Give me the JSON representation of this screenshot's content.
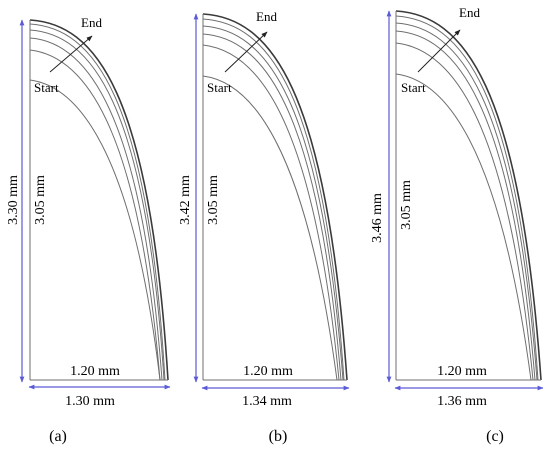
{
  "panels": [
    {
      "id": "a",
      "caption": "(a)",
      "label_start": "Start",
      "label_end": "End",
      "outer_height_label": "3.30 mm",
      "inner_height_label": "3.05 mm",
      "inner_width_label": "1.20 mm",
      "outer_width_label": "1.30 mm"
    },
    {
      "id": "b",
      "caption": "(b)",
      "label_start": "Start",
      "label_end": "End",
      "outer_height_label": "3.42 mm",
      "inner_height_label": "3.05 mm",
      "inner_width_label": "1.20 mm",
      "outer_width_label": "1.34 mm"
    },
    {
      "id": "c",
      "caption": "(c)",
      "label_start": "Start",
      "label_end": "End",
      "outer_height_label": "3.46 mm",
      "inner_height_label": "3.05 mm",
      "inner_width_label": "1.20 mm",
      "outer_width_label": "1.36 mm"
    }
  ],
  "colors": {
    "profile_lines": "#6f6f6f",
    "outer_profile": "#3a3a3a",
    "dimension_lines": "#5b5bd6",
    "text": "#000000",
    "background": "#ffffff"
  }
}
